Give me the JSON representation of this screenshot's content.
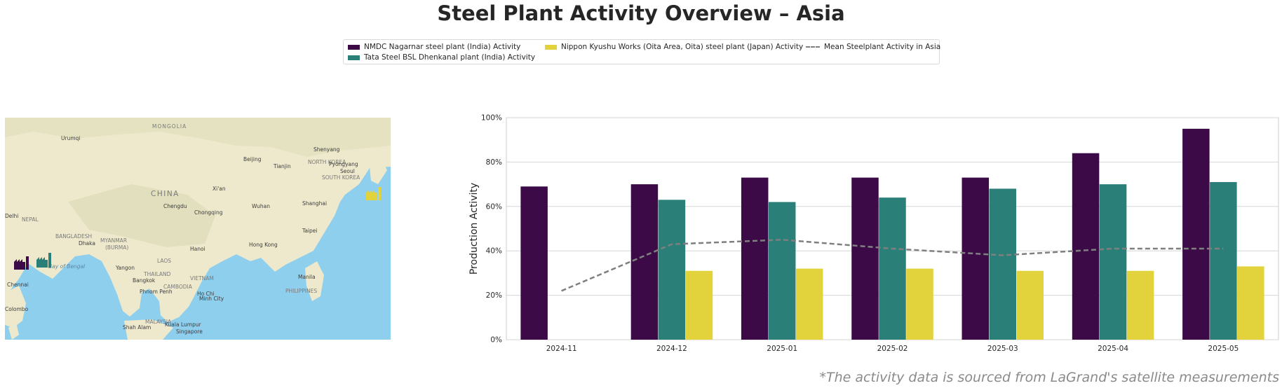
{
  "title": "Steel Plant Activity Overview – Asia",
  "source_note": "*The activity data is sourced from LaGrand's satellite measurements",
  "legend": {
    "nmdc": "NMDC Nagarnar steel plant (India) Activity",
    "tata": "Tata Steel BSL Dhenkanal plant (India) Activity",
    "nippon": "Nippon Kyushu Works (Oita Area, Oita) steel plant (Japan) Activity",
    "mean": "Mean Steelplant Activity in Asia"
  },
  "colors": {
    "nmdc": "#3b0a47",
    "tata": "#2a8079",
    "nippon": "#e2d23c",
    "mean": "#7f7f7f"
  },
  "map_labels": {
    "mongolia": "MONGOLIA",
    "urumqi": "Urumqi",
    "beijing": "Beijing",
    "tianjin": "Tianjin",
    "shenyang": "Shenyang",
    "north_korea": "NORTH KOREA",
    "pyongyang": "Pyongyang",
    "seoul": "Seoul",
    "south_korea": "SOUTH KOREA",
    "china": "CHINA",
    "xian": "Xi'an",
    "chengdu": "Chengdu",
    "chongqing": "Chongqing",
    "wuhan": "Wuhan",
    "shanghai": "Shanghai",
    "delhi": "Delhi",
    "nepal": "NEPAL",
    "bangladesh": "BANGLADESH",
    "dhaka": "Dhaka",
    "myanmar": "MYANMAR",
    "burma": "(BURMA)",
    "hanoi": "Hanoi",
    "hong_kong": "Hong Kong",
    "taipei": "Taipei",
    "laos": "LAOS",
    "bay_of_bengal": "Bay of Bengal",
    "yangon": "Yangon",
    "thailand": "THAILAND",
    "vietnam": "VIETNAM",
    "bangkok": "Bangkok",
    "cambodia": "CAMBODIA",
    "phnom_penh": "Phnom Penh",
    "ho_chi": "Ho Chi",
    "minh_city": "Minh City",
    "manila": "Manila",
    "philippines": "PHILIPPINES",
    "chennai": "Chennai",
    "colombo": "Colombo",
    "malaysia": "MALAYSIA",
    "shah_alam": "Shah Alam",
    "kuala_lumpur": "Kuala Lumpur",
    "singapore": "Singapore"
  },
  "chart_data": {
    "type": "bar",
    "categories": [
      "2024-11",
      "2024-12",
      "2025-01",
      "2025-02",
      "2025-03",
      "2025-04",
      "2025-05"
    ],
    "series": [
      {
        "name": "NMDC Nagarnar steel plant (India) Activity",
        "values": [
          69,
          70,
          73,
          73,
          73,
          84,
          95
        ]
      },
      {
        "name": "Tata Steel BSL Dhenkanal plant (India) Activity",
        "values": [
          null,
          63,
          62,
          64,
          68,
          70,
          71
        ]
      },
      {
        "name": "Nippon Kyushu Works (Oita Area, Oita) steel plant (Japan) Activity",
        "values": [
          null,
          31,
          32,
          32,
          31,
          31,
          33
        ]
      }
    ],
    "line": {
      "name": "Mean Steelplant Activity in Asia",
      "values": [
        22,
        43,
        45,
        41,
        38,
        41,
        41
      ]
    },
    "ylabel": "Production Activity",
    "yticks": [
      "0%",
      "20%",
      "40%",
      "60%",
      "80%",
      "100%"
    ],
    "ylim": [
      0,
      100
    ],
    "grid": true,
    "legend_position": "top-center"
  }
}
